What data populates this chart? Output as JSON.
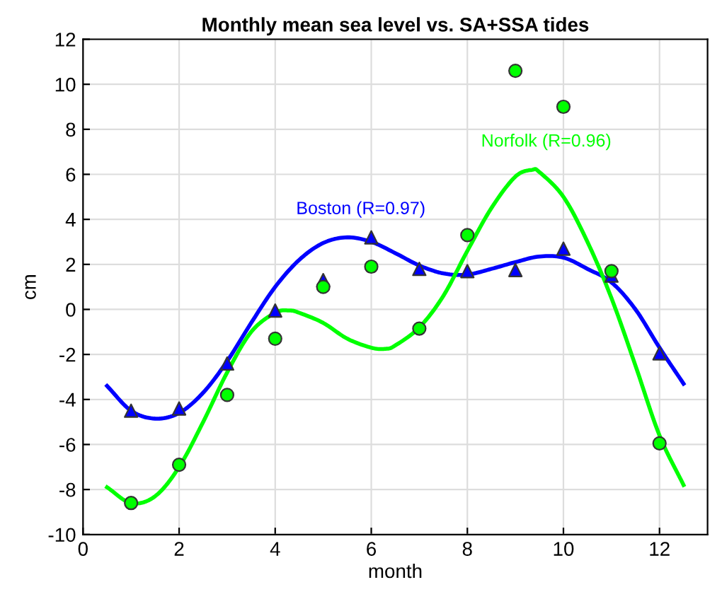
{
  "chart_data": {
    "type": "line",
    "title": "Monthly mean sea level vs. SA+SSA tides",
    "xlabel": "month",
    "ylabel": "cm",
    "xlim": [
      0,
      13
    ],
    "ylim": [
      -10,
      12
    ],
    "xticks": [
      0,
      2,
      4,
      6,
      8,
      10,
      12
    ],
    "yticks": [
      -10,
      -8,
      -6,
      -4,
      -2,
      0,
      2,
      4,
      6,
      8,
      10,
      12
    ],
    "grid": true,
    "series": [
      {
        "name": "Boston (R=0.97)",
        "marker": "none",
        "color": "#0000ff",
        "x": [
          0.5,
          1.0,
          1.5,
          2.0,
          2.5,
          3.0,
          3.5,
          4.0,
          4.5,
          5.0,
          5.5,
          6.0,
          6.5,
          7.0,
          7.5,
          8.0,
          8.5,
          9.0,
          9.5,
          10.0,
          10.5,
          11.0,
          11.5,
          12.0,
          12.5
        ],
        "values": [
          -3.4,
          -4.5,
          -4.85,
          -4.6,
          -3.7,
          -2.3,
          -0.6,
          1.0,
          2.2,
          2.95,
          3.2,
          3.0,
          2.5,
          1.95,
          1.6,
          1.55,
          1.8,
          2.1,
          2.35,
          2.3,
          1.8,
          1.2,
          0.0,
          -1.7,
          -3.3
        ]
      },
      {
        "name": "Norfolk (R=0.96)",
        "marker": "none",
        "color": "#00ff00",
        "x": [
          0.5,
          1.0,
          1.5,
          2.0,
          2.5,
          3.0,
          3.5,
          4.0,
          4.3,
          4.5,
          5.0,
          5.5,
          6.0,
          6.3,
          6.5,
          7.0,
          7.5,
          8.0,
          8.5,
          9.0,
          9.35,
          9.5,
          10.0,
          10.5,
          11.0,
          11.5,
          12.0,
          12.5
        ],
        "values": [
          -7.9,
          -8.6,
          -8.3,
          -7.0,
          -5.0,
          -2.8,
          -1.0,
          -0.15,
          -0.05,
          -0.15,
          -0.6,
          -1.3,
          -1.7,
          -1.75,
          -1.6,
          -0.8,
          0.6,
          2.6,
          4.5,
          5.9,
          6.2,
          6.1,
          5.0,
          3.0,
          0.5,
          -2.5,
          -5.6,
          -7.8
        ]
      },
      {
        "type": "scatter",
        "marker": "triangle",
        "color": "#0000ff",
        "x": [
          1,
          2,
          3,
          4,
          5,
          6,
          7,
          8,
          9,
          10,
          11,
          12
        ],
        "values": [
          -4.5,
          -4.4,
          -2.4,
          -0.05,
          1.3,
          3.2,
          1.8,
          1.7,
          1.75,
          2.7,
          1.5,
          -1.95
        ]
      },
      {
        "type": "scatter",
        "marker": "circle",
        "color": "#00ff00",
        "x": [
          1,
          2,
          3,
          4,
          5,
          6,
          7,
          8,
          9,
          10,
          11,
          12
        ],
        "values": [
          -8.6,
          -6.9,
          -3.8,
          -1.3,
          1.0,
          1.9,
          -0.85,
          3.3,
          10.6,
          9.0,
          1.7,
          -5.95
        ]
      }
    ]
  }
}
